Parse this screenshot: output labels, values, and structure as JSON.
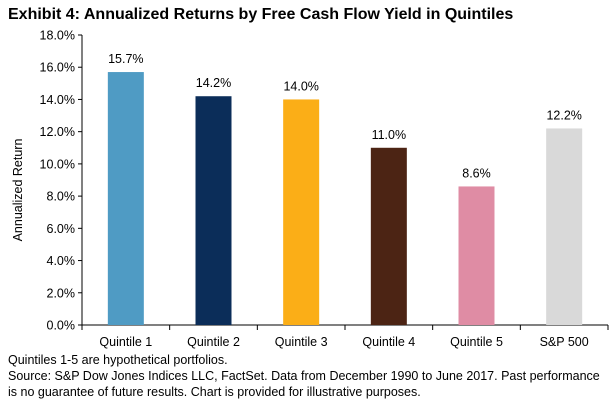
{
  "chart_data": {
    "type": "bar",
    "title": "Exhibit 4: Annualized Returns by Free Cash Flow Yield in Quintiles",
    "xlabel": "",
    "ylabel": "Annualized Return",
    "ylim": [
      0,
      18
    ],
    "y_tick_values": [
      0,
      2,
      4,
      6,
      8,
      10,
      12,
      14,
      16,
      18
    ],
    "y_tick_labels": [
      "0.0%",
      "2.0%",
      "4.0%",
      "6.0%",
      "8.0%",
      "10.0%",
      "12.0%",
      "14.0%",
      "16.0%",
      "18.0%"
    ],
    "grid": false,
    "categories": [
      "Quintile 1",
      "Quintile 2",
      "Quintile 3",
      "Quintile 4",
      "Quintile 5",
      "S&P 500"
    ],
    "values": [
      15.7,
      14.2,
      14.0,
      11.0,
      8.6,
      12.2
    ],
    "data_labels": [
      "15.7%",
      "14.2%",
      "14.0%",
      "11.0%",
      "8.6%",
      "12.2%"
    ],
    "colors": [
      "#4f9bc4",
      "#0b2d59",
      "#fbae17",
      "#4c2414",
      "#df8ca4",
      "#d9d9d9"
    ]
  },
  "notes": {
    "line1": "Quintiles 1-5 are hypothetical portfolios.",
    "line2": "Source: S&P Dow Jones Indices LLC, FactSet.  Data from December 1990 to June 2017.  Past performance is no guarantee of future results.  Chart is provided for illustrative purposes."
  }
}
